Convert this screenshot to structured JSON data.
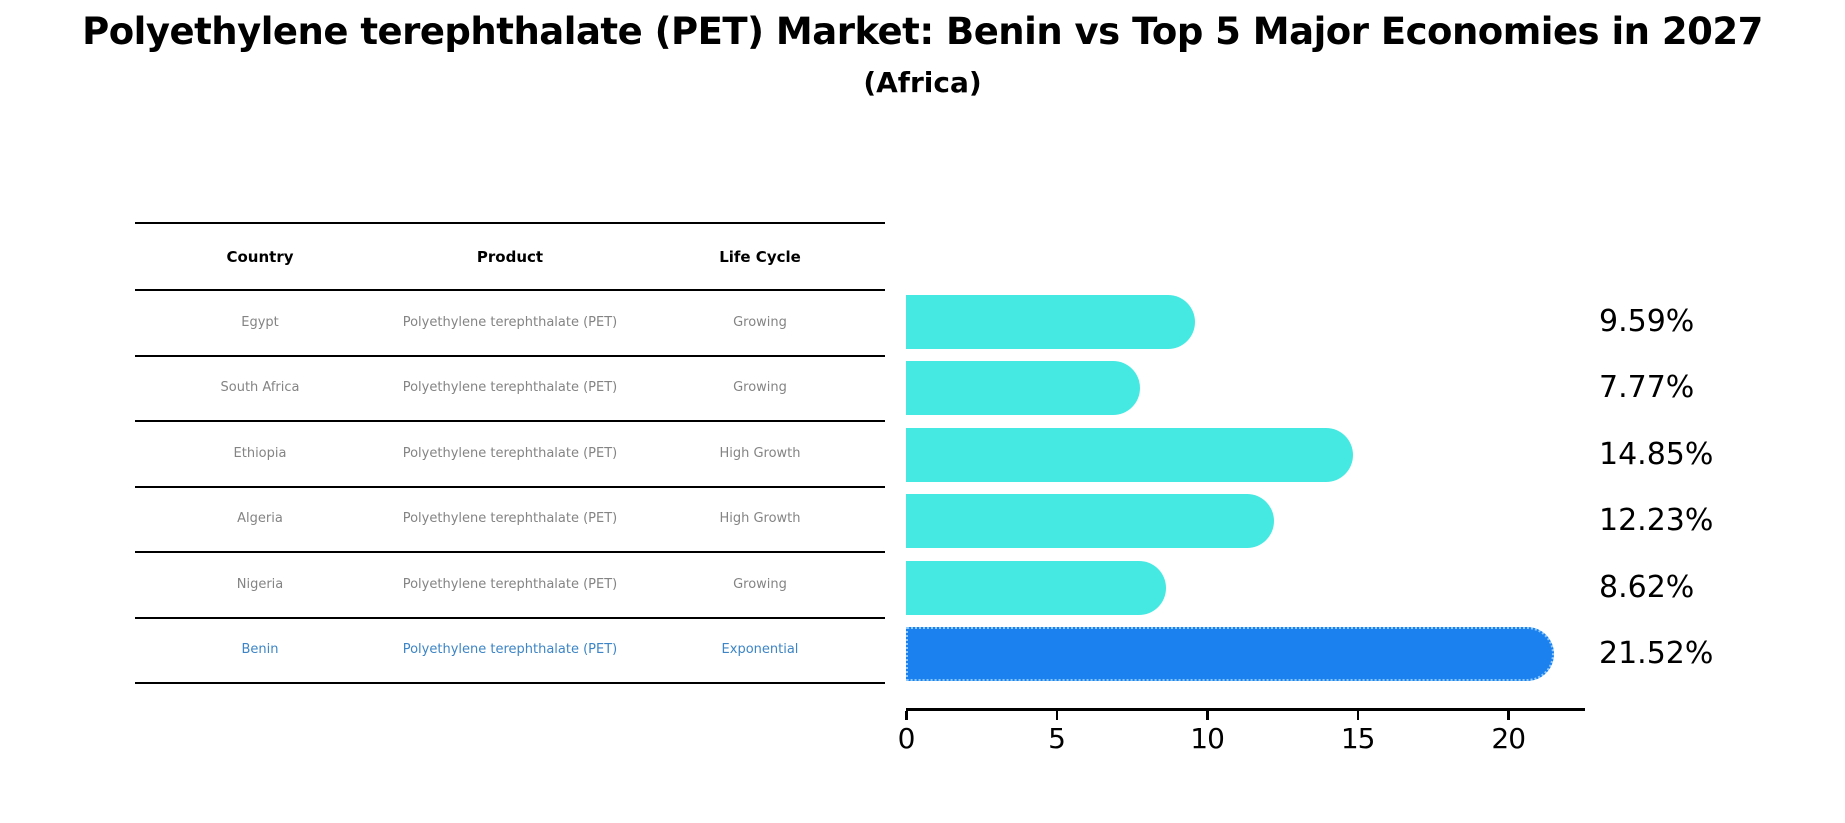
{
  "header": {
    "title": "Polyethylene terephthalate (PET) Market: Benin vs Top 5 Major Economies in 2027",
    "subtitle": "(Africa)"
  },
  "table": {
    "columns": [
      "Country",
      "Product",
      "Life Cycle"
    ],
    "rows": [
      {
        "country": "Egypt",
        "product": "Polyethylene terephthalate (PET)",
        "life_cycle": "Growing",
        "highlight": false
      },
      {
        "country": "South Africa",
        "product": "Polyethylene terephthalate (PET)",
        "life_cycle": "Growing",
        "highlight": false
      },
      {
        "country": "Ethiopia",
        "product": "Polyethylene terephthalate (PET)",
        "life_cycle": "High Growth",
        "highlight": false
      },
      {
        "country": "Algeria",
        "product": "Polyethylene terephthalate (PET)",
        "life_cycle": "High Growth",
        "highlight": false
      },
      {
        "country": "Nigeria",
        "product": "Polyethylene terephthalate (PET)",
        "life_cycle": "Growing",
        "highlight": false
      },
      {
        "country": "Benin",
        "product": "Polyethylene terephthalate (PET)",
        "life_cycle": "Exponential",
        "highlight": true
      }
    ]
  },
  "chart_data": {
    "type": "bar",
    "orientation": "horizontal",
    "title": "Polyethylene terephthalate (PET) Market: Benin vs Top 5 Major Economies in 2027 (Africa)",
    "categories": [
      "Egypt",
      "South Africa",
      "Ethiopia",
      "Algeria",
      "Nigeria",
      "Benin"
    ],
    "values": [
      9.59,
      7.77,
      14.85,
      12.23,
      8.62,
      21.52
    ],
    "value_labels": [
      "9.59%",
      "7.77%",
      "14.85%",
      "12.23%",
      "8.62%",
      "21.52%"
    ],
    "xticks": [
      "0",
      "5",
      "10",
      "15",
      "20"
    ],
    "xtick_values": [
      0,
      5,
      10,
      15,
      20
    ],
    "xlim": [
      0,
      22.55
    ],
    "xlabel": "",
    "ylabel": "",
    "grid": false,
    "legend": false,
    "bar_color": "#45E9E2",
    "highlight_color": "#1B81EE",
    "highlight_border_color": "#8EC9FF",
    "highlight_index": 5,
    "highlight_text_color": "#3D85C6",
    "row_text_color": "#848484"
  }
}
